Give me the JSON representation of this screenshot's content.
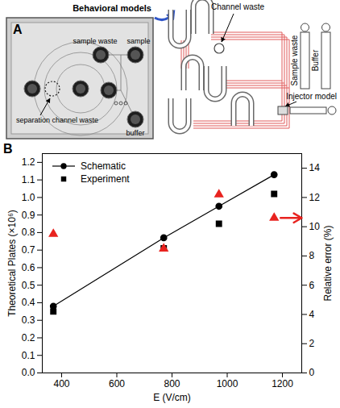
{
  "diagram": {
    "panel_label": "A",
    "callout": "Behavioral models",
    "photo": {
      "labels": [
        "sample waste",
        "sample",
        "separation channel waste",
        "buffer"
      ]
    },
    "schematic": {
      "labels": [
        "Channel waste",
        "Sample waste",
        "Buffer",
        "Injector model"
      ]
    }
  },
  "chart_data": {
    "panel_label": "B",
    "type": "line",
    "x_label": "E (V/cm)",
    "y_label": "Theoretical Plates (×10⁶)",
    "y2_label": "Relative error (%)",
    "x": [
      370,
      770,
      970,
      1170
    ],
    "series": [
      {
        "name": "Schematic",
        "type": "line",
        "color": "#000000",
        "marker": "circle",
        "line_style": "solid",
        "values": [
          0.38,
          0.77,
          0.95,
          1.13
        ]
      },
      {
        "name": "Experiment",
        "type": "scatter",
        "color": "#000000",
        "marker": "square",
        "values": [
          0.35,
          0.71,
          0.85,
          1.02
        ]
      },
      {
        "type": "scatter",
        "color": "#e8231f",
        "marker": "triangle",
        "axis": "y2",
        "values": [
          9.5,
          8.5,
          12.2,
          10.6
        ]
      }
    ],
    "xlim": [
      330,
      1270
    ],
    "xticks": [
      400,
      600,
      800,
      1000,
      1200
    ],
    "ylim": [
      0,
      1.25
    ],
    "yticks": [
      {
        "value": 0,
        "label": "0.0"
      },
      0.1,
      0.2,
      0.3,
      0.4,
      0.5,
      0.6,
      0.7,
      0.8,
      0.9,
      {
        "value": 1,
        "label": "1.0"
      },
      1.1,
      1.2
    ],
    "y2lim": [
      0,
      15
    ],
    "y2ticks": [
      0,
      2,
      4,
      6,
      8,
      10,
      12,
      14
    ],
    "legend": "top-left"
  }
}
